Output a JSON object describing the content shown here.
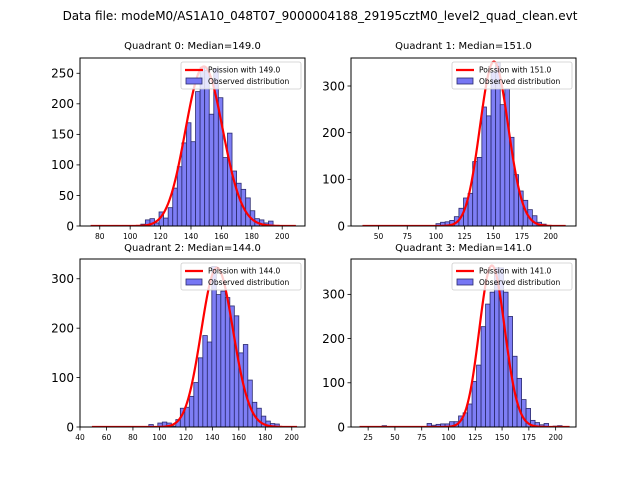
{
  "chart_data": {
    "suptitle": "Data file: modeM0/AS1A10_048T07_9000004188_29195cztM0_level2_quad_clean.evt",
    "colors": {
      "bar_fill": "#7777f4",
      "bar_edge": "#2a2a6e",
      "line": "#ff0000"
    },
    "panels": [
      {
        "type": "bar",
        "title": "Quadrant 0: Median=149.0",
        "legend": {
          "line_label": "Poission with 149.0",
          "bar_label": "Observed distribution",
          "placement": "upper right"
        },
        "xlim": [
          67,
          215
        ],
        "ylim": [
          0,
          275
        ],
        "xticks": [
          80,
          100,
          120,
          140,
          160,
          180,
          200
        ],
        "yticks": [
          0,
          50,
          100,
          150,
          200,
          250
        ],
        "bin_width": 3,
        "bins_start": [
          74,
          77,
          80,
          83,
          86,
          89,
          92,
          95,
          98,
          101,
          104,
          107,
          110,
          113,
          116,
          119,
          122,
          125,
          128,
          131,
          134,
          137,
          140,
          143,
          146,
          149,
          152,
          155,
          158,
          161,
          164,
          167,
          170,
          173,
          176,
          179,
          182,
          185,
          188,
          191,
          194,
          197,
          200,
          203,
          206
        ],
        "values": [
          0,
          0,
          0,
          0,
          0,
          1,
          0,
          1,
          0,
          0,
          0,
          3,
          10,
          12,
          5,
          23,
          13,
          30,
          62,
          97,
          136,
          169,
          138,
          220,
          260,
          255,
          183,
          258,
          210,
          112,
          152,
          90,
          70,
          60,
          46,
          25,
          12,
          10,
          5,
          8,
          0,
          0,
          0,
          0,
          0
        ],
        "poisson_mean": 149.0,
        "poisson_scale": 261,
        "fit_range": [
          74,
          209
        ]
      },
      {
        "type": "bar",
        "title": "Quadrant 1: Median=151.0",
        "legend": {
          "line_label": "Poission with 151.0",
          "bar_label": "Observed distribution",
          "placement": "upper right"
        },
        "xlim": [
          26,
          222
        ],
        "ylim": [
          0,
          360
        ],
        "xticks": [
          50,
          75,
          100,
          125,
          150,
          175,
          200
        ],
        "yticks": [
          0,
          100,
          200,
          300
        ],
        "bin_width": 4,
        "bins_start": [
          36,
          40,
          44,
          48,
          52,
          56,
          60,
          64,
          68,
          72,
          76,
          80,
          84,
          88,
          92,
          96,
          100,
          104,
          108,
          112,
          116,
          120,
          124,
          128,
          132,
          136,
          140,
          144,
          148,
          152,
          156,
          160,
          164,
          168,
          172,
          176,
          180,
          184,
          188,
          192,
          196,
          200,
          204,
          208
        ],
        "values": [
          0,
          0,
          0,
          0,
          0,
          0,
          0,
          0,
          0,
          0,
          0,
          0,
          0,
          0,
          0,
          0,
          5,
          8,
          9,
          12,
          20,
          38,
          60,
          70,
          138,
          147,
          255,
          236,
          330,
          350,
          260,
          294,
          190,
          110,
          75,
          55,
          35,
          22,
          8,
          4,
          0,
          0,
          0,
          0
        ],
        "poisson_mean": 151.0,
        "poisson_scale": 352,
        "fit_range": [
          36,
          213
        ]
      },
      {
        "type": "bar",
        "title": "Quadrant 2: Median=144.0",
        "legend": {
          "line_label": "Poission with 144.0",
          "bar_label": "Observed distribution",
          "placement": "upper right"
        },
        "xlim": [
          40,
          210
        ],
        "ylim": [
          0,
          340
        ],
        "xticks": [
          40,
          60,
          80,
          100,
          120,
          140,
          160,
          180,
          200
        ],
        "yticks": [
          0,
          100,
          200,
          300
        ],
        "bin_width": 3.4,
        "bins_start": [
          92,
          95.4,
          98.8,
          102.2,
          105.6,
          109,
          112.4,
          115.8,
          119.2,
          122.6,
          126,
          129.4,
          132.8,
          136.2,
          139.6,
          143,
          146.4,
          149.8,
          153.2,
          156.6,
          160,
          163.4,
          166.8,
          170.2,
          173.6,
          177,
          180.4,
          183.8,
          187.2
        ],
        "values": [
          5,
          0,
          8,
          10,
          8,
          2,
          15,
          38,
          40,
          62,
          90,
          140,
          185,
          172,
          325,
          268,
          275,
          262,
          245,
          225,
          150,
          167,
          95,
          50,
          38,
          22,
          12,
          7,
          6
        ],
        "poisson_mean": 144.0,
        "poisson_scale": 322,
        "fit_range": [
          49,
          204
        ]
      },
      {
        "type": "bar",
        "title": "Quadrant 3: Median=141.0",
        "legend": {
          "line_label": "Poission with 141.0",
          "bar_label": "Observed distribution",
          "placement": "upper right"
        },
        "xlim": [
          9,
          219
        ],
        "ylim": [
          0,
          380
        ],
        "xticks": [
          25,
          50,
          75,
          100,
          125,
          150,
          175,
          200
        ],
        "yticks": [
          0,
          100,
          200,
          300
        ],
        "bin_width": 4.2,
        "bins_start": [
          17,
          21.2,
          25.4,
          29.6,
          33.8,
          38,
          42.2,
          46.4,
          50.6,
          54.8,
          59,
          63.2,
          67.4,
          71.6,
          75.8,
          80,
          84.2,
          88.4,
          92.6,
          96.8,
          101,
          105.2,
          109.4,
          113.6,
          117.8,
          122,
          126.2,
          130.4,
          134.6,
          138.8,
          143,
          147.2,
          151.4,
          155.6,
          159.8,
          164,
          168.2,
          172.4,
          176.6,
          180.8,
          185,
          189.2,
          193.4,
          197.6,
          201.8,
          206
        ],
        "values": [
          0,
          0,
          0,
          0,
          0,
          3,
          0,
          0,
          0,
          0,
          0,
          0,
          0,
          0,
          0,
          8,
          4,
          6,
          7,
          7,
          12,
          12,
          25,
          32,
          52,
          103,
          140,
          227,
          278,
          305,
          360,
          360,
          305,
          250,
          160,
          110,
          62,
          42,
          15,
          10,
          5,
          8,
          0,
          2,
          3,
          0
        ],
        "poisson_mean": 141.0,
        "poisson_scale": 365,
        "fit_range": [
          17,
          213
        ]
      }
    ]
  }
}
